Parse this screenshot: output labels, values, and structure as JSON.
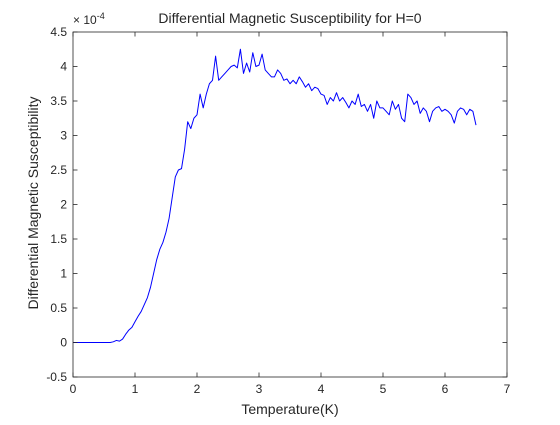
{
  "chart_data": {
    "type": "line",
    "title": "Differential Magnetic Susceptibility for H=0",
    "xlabel": "Temperature(K)",
    "ylabel": "Differential Magnetic Susceptibility",
    "y_exponent_label": "× 10",
    "y_exponent_power": "-4",
    "xlim": [
      0,
      7
    ],
    "ylim": [
      -0.5,
      4.5
    ],
    "xticks": [
      0,
      1,
      2,
      3,
      4,
      5,
      6,
      7
    ],
    "xtick_labels": [
      "0",
      "1",
      "2",
      "3",
      "4",
      "5",
      "6",
      "7"
    ],
    "yticks": [
      -0.5,
      0,
      0.5,
      1,
      1.5,
      2,
      2.5,
      3,
      3.5,
      4,
      4.5
    ],
    "ytick_labels": [
      "-0.5",
      "0",
      "0.5",
      "1",
      "1.5",
      "2",
      "2.5",
      "3",
      "3.5",
      "4",
      "4.5"
    ],
    "grid": false,
    "legend": "none",
    "line_color": "#0000ff",
    "axes_color": "#262626",
    "series": [
      {
        "x": [
          0.0,
          0.1,
          0.2,
          0.3,
          0.4,
          0.5,
          0.6,
          0.65,
          0.7,
          0.75,
          0.8,
          0.85,
          0.9,
          0.95,
          1.0,
          1.05,
          1.1,
          1.15,
          1.2,
          1.25,
          1.3,
          1.35,
          1.4,
          1.45,
          1.5,
          1.55,
          1.6,
          1.65,
          1.7,
          1.75,
          1.8,
          1.85,
          1.9,
          1.95,
          2.0,
          2.05,
          2.1,
          2.15,
          2.2,
          2.25,
          2.3,
          2.35,
          2.4,
          2.45,
          2.5,
          2.55,
          2.6,
          2.65,
          2.7,
          2.75,
          2.8,
          2.85,
          2.9,
          2.95,
          3.0,
          3.05,
          3.1,
          3.15,
          3.2,
          3.25,
          3.3,
          3.35,
          3.4,
          3.45,
          3.5,
          3.55,
          3.6,
          3.65,
          3.7,
          3.75,
          3.8,
          3.85,
          3.9,
          3.95,
          4.0,
          4.05,
          4.1,
          4.15,
          4.2,
          4.25,
          4.3,
          4.35,
          4.4,
          4.45,
          4.5,
          4.55,
          4.6,
          4.65,
          4.7,
          4.75,
          4.8,
          4.85,
          4.9,
          4.95,
          5.0,
          5.05,
          5.1,
          5.15,
          5.2,
          5.25,
          5.3,
          5.35,
          5.4,
          5.45,
          5.5,
          5.55,
          5.6,
          5.65,
          5.7,
          5.75,
          5.8,
          5.85,
          5.9,
          5.95,
          6.0,
          6.05,
          6.1,
          6.15,
          6.2,
          6.25,
          6.3,
          6.35,
          6.4,
          6.45,
          6.5
        ],
        "values": [
          0,
          0,
          0,
          0,
          0,
          0,
          0,
          0.01,
          0.03,
          0.02,
          0.05,
          0.12,
          0.18,
          0.22,
          0.3,
          0.38,
          0.45,
          0.55,
          0.65,
          0.8,
          1.0,
          1.2,
          1.35,
          1.45,
          1.6,
          1.8,
          2.1,
          2.4,
          2.5,
          2.52,
          2.8,
          3.2,
          3.1,
          3.25,
          3.3,
          3.6,
          3.4,
          3.6,
          3.75,
          3.8,
          4.15,
          3.8,
          3.85,
          3.9,
          3.95,
          4.0,
          4.02,
          3.98,
          4.25,
          3.9,
          4.05,
          3.92,
          4.2,
          4.0,
          4.02,
          4.18,
          3.95,
          3.9,
          3.85,
          3.85,
          3.95,
          3.9,
          3.8,
          3.82,
          3.75,
          3.8,
          3.75,
          3.85,
          3.78,
          3.7,
          3.75,
          3.65,
          3.7,
          3.68,
          3.6,
          3.58,
          3.45,
          3.55,
          3.5,
          3.62,
          3.5,
          3.55,
          3.48,
          3.4,
          3.5,
          3.45,
          3.6,
          3.42,
          3.45,
          3.35,
          3.45,
          3.25,
          3.5,
          3.4,
          3.4,
          3.35,
          3.3,
          3.5,
          3.38,
          3.45,
          3.25,
          3.2,
          3.6,
          3.55,
          3.45,
          3.5,
          3.32,
          3.4,
          3.35,
          3.2,
          3.35,
          3.4,
          3.42,
          3.35,
          3.38,
          3.35,
          3.3,
          3.18,
          3.35,
          3.4,
          3.38,
          3.3,
          3.38,
          3.35,
          3.15
        ]
      }
    ]
  }
}
